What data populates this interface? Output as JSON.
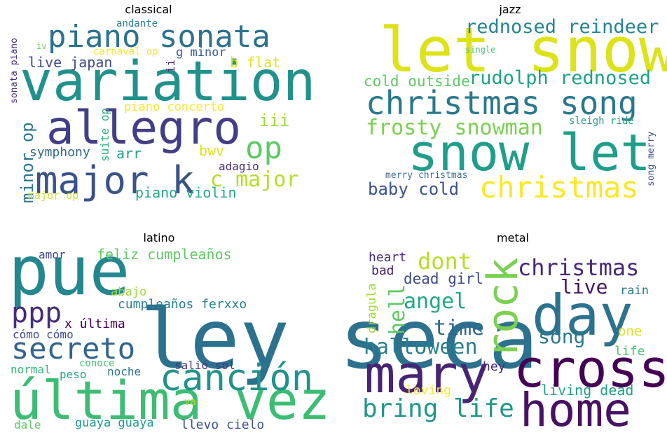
{
  "chart_data": {
    "type": "wordcloud",
    "panels": [
      {
        "title": "classical",
        "words": [
          {
            "text": "variation",
            "color": "#21918c"
          },
          {
            "text": "allegro",
            "color": "#433e85"
          },
          {
            "text": "piano sonata",
            "color": "#2c728e"
          },
          {
            "text": "major k",
            "color": "#3b528b"
          },
          {
            "text": "op",
            "color": "#5ec962"
          },
          {
            "text": "c major",
            "color": "#b5de2b"
          },
          {
            "text": "minor op",
            "color": "#2a788e"
          },
          {
            "text": "live japan",
            "color": "#3e4989"
          },
          {
            "text": "iii",
            "color": "#a0da39"
          },
          {
            "text": "piano violin",
            "color": "#22a884"
          },
          {
            "text": "arr",
            "color": "#1f9e89"
          },
          {
            "text": "symphony",
            "color": "#31688e"
          },
          {
            "text": "adagio",
            "color": "#482878"
          },
          {
            "text": "bwv",
            "color": "#dde318"
          },
          {
            "text": "b flat",
            "color": "#dde318"
          },
          {
            "text": "g minor",
            "color": "#38588c"
          },
          {
            "text": "piano concerto",
            "color": "#fde725"
          },
          {
            "text": "suite op",
            "color": "#2db27d"
          },
          {
            "text": "ii",
            "color": "#482173"
          },
          {
            "text": "sonata piano",
            "color": "#472d7b"
          },
          {
            "text": "carnaval op",
            "color": "#fde725"
          },
          {
            "text": "andante",
            "color": "#26828e"
          },
          {
            "text": "major op",
            "color": "#d0e11c"
          },
          {
            "text": "iv",
            "color": "#6ece58"
          }
        ]
      },
      {
        "title": "jazz",
        "words": [
          {
            "text": "let snow",
            "color": "#dde318"
          },
          {
            "text": "snow let",
            "color": "#1f9e89"
          },
          {
            "text": "christmas song",
            "color": "#2a788e"
          },
          {
            "text": "christmas",
            "color": "#fde725"
          },
          {
            "text": "rednosed reindeer",
            "color": "#25858e"
          },
          {
            "text": "rudolph rednosed",
            "color": "#1fa187"
          },
          {
            "text": "frosty snowman",
            "color": "#7ad151"
          },
          {
            "text": "baby cold",
            "color": "#3b528b"
          },
          {
            "text": "cold outside",
            "color": "#5ec962"
          },
          {
            "text": "sleigh ride",
            "color": "#2a9c8a"
          },
          {
            "text": "merry christmas",
            "color": "#3e6c8d"
          },
          {
            "text": "song merry",
            "color": "#3b528b"
          },
          {
            "text": "single",
            "color": "#43bf71"
          }
        ]
      },
      {
        "title": "latino",
        "words": [
          {
            "text": "pue",
            "color": "#24868e"
          },
          {
            "text": "ley seca",
            "color": "#2c718e"
          },
          {
            "text": "última vez",
            "color": "#3dbc74"
          },
          {
            "text": "canción",
            "color": "#20928c"
          },
          {
            "text": "secreto",
            "color": "#33638d"
          },
          {
            "text": "ppp",
            "color": "#472c7a"
          },
          {
            "text": "feliz cumpleaños",
            "color": "#5ec962"
          },
          {
            "text": "cumpleaños ferxxo",
            "color": "#26828e"
          },
          {
            "text": "x última",
            "color": "#440154"
          },
          {
            "text": "abajo",
            "color": "#9fda3a"
          },
          {
            "text": "cómo cómo",
            "color": "#3e4989"
          },
          {
            "text": "amor",
            "color": "#414487"
          },
          {
            "text": "salió sol",
            "color": "#453781"
          },
          {
            "text": "noche",
            "color": "#2c728e"
          },
          {
            "text": "conoce",
            "color": "#4ac16d"
          },
          {
            "text": "normal",
            "color": "#35b779"
          },
          {
            "text": "peso",
            "color": "#21a685"
          },
          {
            "text": "va",
            "color": "#b8de29"
          },
          {
            "text": "guaya guaya",
            "color": "#1f988b"
          },
          {
            "text": "llevo cielo",
            "color": "#3b528b"
          },
          {
            "text": "dale",
            "color": "#5ec962"
          }
        ]
      },
      {
        "title": "metal",
        "words": [
          {
            "text": "mary",
            "color": "#482475"
          },
          {
            "text": "cross",
            "color": "#440154"
          },
          {
            "text": "home",
            "color": "#471164"
          },
          {
            "text": "day",
            "color": "#2c728e"
          },
          {
            "text": "rock",
            "color": "#7ad151"
          },
          {
            "text": "christmas",
            "color": "#482878"
          },
          {
            "text": "bring life",
            "color": "#1f988b"
          },
          {
            "text": "halloween",
            "color": "#277f8e"
          },
          {
            "text": "dont",
            "color": "#b5de2b"
          },
          {
            "text": "angel",
            "color": "#22a884"
          },
          {
            "text": "time",
            "color": "#31688e"
          },
          {
            "text": "song",
            "color": "#2a788e"
          },
          {
            "text": "live",
            "color": "#471365"
          },
          {
            "text": "hell",
            "color": "#5ec962"
          },
          {
            "text": "dead girl",
            "color": "#3e4989"
          },
          {
            "text": "heart",
            "color": "#472c7a"
          },
          {
            "text": "bad",
            "color": "#481a6c"
          },
          {
            "text": "dragula",
            "color": "#9fda3a"
          },
          {
            "text": "rain",
            "color": "#2a788e"
          },
          {
            "text": "one",
            "color": "#dde318"
          },
          {
            "text": "life",
            "color": "#4ac16d"
          },
          {
            "text": "hey",
            "color": "#482878"
          },
          {
            "text": "living dead",
            "color": "#1fa187"
          },
          {
            "text": "loving",
            "color": "#fde725"
          }
        ]
      }
    ]
  }
}
